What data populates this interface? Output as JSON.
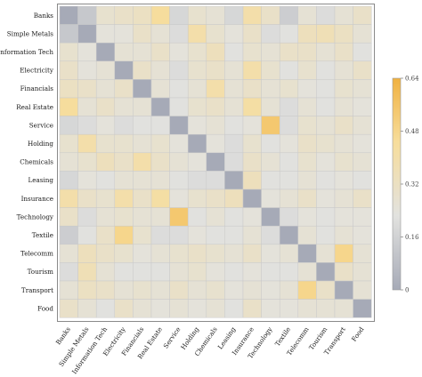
{
  "chart_data": {
    "type": "heatmap",
    "title": "",
    "xlabel": "",
    "ylabel": "",
    "rows": [
      "Banks",
      "Simple Metals",
      "Information Tech",
      "Electricity",
      "Financials",
      "Real Estate",
      "Service",
      "Holding",
      "Chemicals",
      "Leasing",
      "Insurance",
      "Technology",
      "Textile",
      "Telecomm",
      "Tourism",
      "Transport",
      "Food"
    ],
    "columns": [
      "Banks",
      "Simple Metals",
      "Information Tech",
      "Electricity",
      "Financials",
      "Real Estate",
      "Service",
      "Holding",
      "Chemicals",
      "Leasing",
      "Insurance",
      "Technology",
      "Textile",
      "Telecomm",
      "Tourism",
      "Transport",
      "Food"
    ],
    "values": [
      [
        0.0,
        0.12,
        0.28,
        0.3,
        0.32,
        0.44,
        0.18,
        0.28,
        0.26,
        0.18,
        0.4,
        0.3,
        0.14,
        0.26,
        0.2,
        0.26,
        0.3
      ],
      [
        0.12,
        0.0,
        0.24,
        0.24,
        0.3,
        0.26,
        0.2,
        0.4,
        0.28,
        0.24,
        0.3,
        0.2,
        0.22,
        0.34,
        0.36,
        0.32,
        0.26
      ],
      [
        0.28,
        0.24,
        0.0,
        0.26,
        0.26,
        0.3,
        0.24,
        0.28,
        0.34,
        0.22,
        0.28,
        0.26,
        0.3,
        0.3,
        0.26,
        0.3,
        0.22
      ],
      [
        0.3,
        0.24,
        0.26,
        0.0,
        0.3,
        0.26,
        0.2,
        0.28,
        0.3,
        0.26,
        0.4,
        0.28,
        0.22,
        0.28,
        0.22,
        0.26,
        0.3
      ],
      [
        0.32,
        0.3,
        0.26,
        0.3,
        0.0,
        0.26,
        0.22,
        0.26,
        0.4,
        0.26,
        0.3,
        0.26,
        0.28,
        0.24,
        0.22,
        0.28,
        0.26
      ],
      [
        0.44,
        0.26,
        0.3,
        0.26,
        0.26,
        0.0,
        0.22,
        0.28,
        0.3,
        0.26,
        0.42,
        0.26,
        0.2,
        0.26,
        0.22,
        0.26,
        0.24
      ],
      [
        0.18,
        0.2,
        0.24,
        0.2,
        0.22,
        0.22,
        0.0,
        0.24,
        0.26,
        0.22,
        0.24,
        0.54,
        0.2,
        0.28,
        0.26,
        0.3,
        0.26
      ],
      [
        0.28,
        0.4,
        0.28,
        0.28,
        0.26,
        0.28,
        0.24,
        0.0,
        0.24,
        0.2,
        0.28,
        0.22,
        0.24,
        0.3,
        0.28,
        0.26,
        0.24
      ],
      [
        0.26,
        0.28,
        0.34,
        0.3,
        0.4,
        0.3,
        0.26,
        0.24,
        0.0,
        0.2,
        0.3,
        0.26,
        0.22,
        0.28,
        0.24,
        0.28,
        0.26
      ],
      [
        0.18,
        0.24,
        0.22,
        0.26,
        0.26,
        0.26,
        0.22,
        0.2,
        0.2,
        0.0,
        0.34,
        0.22,
        0.22,
        0.26,
        0.22,
        0.24,
        0.22
      ],
      [
        0.4,
        0.3,
        0.28,
        0.4,
        0.3,
        0.42,
        0.24,
        0.28,
        0.3,
        0.34,
        0.0,
        0.24,
        0.26,
        0.3,
        0.24,
        0.26,
        0.3
      ],
      [
        0.3,
        0.2,
        0.26,
        0.28,
        0.26,
        0.26,
        0.54,
        0.22,
        0.26,
        0.22,
        0.24,
        0.0,
        0.2,
        0.24,
        0.22,
        0.24,
        0.24
      ],
      [
        0.14,
        0.22,
        0.3,
        0.48,
        0.28,
        0.2,
        0.2,
        0.24,
        0.22,
        0.22,
        0.26,
        0.2,
        0.0,
        0.26,
        0.22,
        0.26,
        0.24
      ],
      [
        0.26,
        0.34,
        0.3,
        0.28,
        0.24,
        0.26,
        0.28,
        0.3,
        0.28,
        0.26,
        0.3,
        0.24,
        0.26,
        0.0,
        0.26,
        0.48,
        0.26
      ],
      [
        0.2,
        0.36,
        0.26,
        0.22,
        0.22,
        0.22,
        0.26,
        0.28,
        0.24,
        0.22,
        0.24,
        0.22,
        0.22,
        0.26,
        0.0,
        0.3,
        0.26
      ],
      [
        0.26,
        0.32,
        0.3,
        0.26,
        0.28,
        0.26,
        0.3,
        0.26,
        0.28,
        0.24,
        0.26,
        0.24,
        0.26,
        0.48,
        0.3,
        0.0,
        0.26
      ],
      [
        0.3,
        0.26,
        0.22,
        0.3,
        0.26,
        0.24,
        0.26,
        0.24,
        0.26,
        0.22,
        0.3,
        0.24,
        0.24,
        0.26,
        0.26,
        0.26,
        0.0
      ]
    ],
    "colorbar": {
      "min": 0,
      "max": 0.64,
      "ticks": [
        "0",
        "0.16",
        "0.32",
        "0.48",
        "0.64"
      ],
      "tick_values": [
        0,
        0.16,
        0.32,
        0.48,
        0.64
      ],
      "colors": [
        "#a6aab7",
        "#e2e2df",
        "#f7dd9b",
        "#f0b140"
      ]
    },
    "grid": true,
    "legend": "right (colorbar)"
  }
}
